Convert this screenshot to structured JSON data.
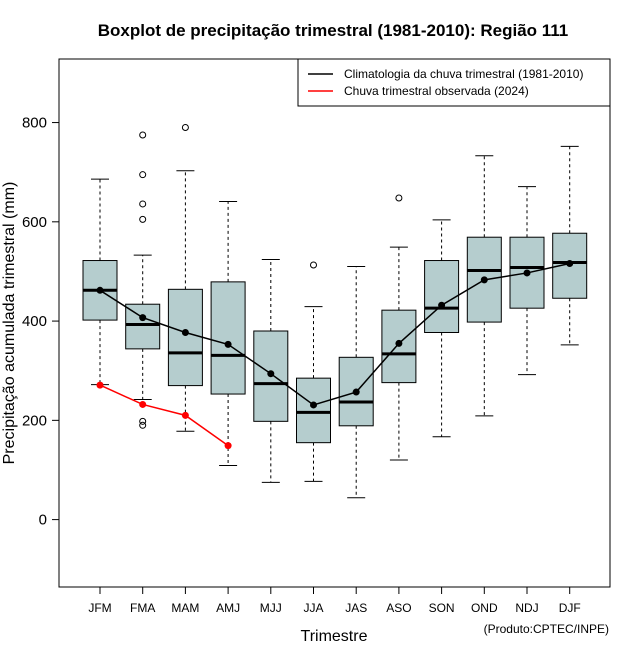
{
  "chart_data": {
    "type": "boxplot",
    "title": "Boxplot de precipitação trimestral (1981-2010): Região 111",
    "xlabel": "Trimestre",
    "ylabel": "Precipitação acumulada trimestral (mm)",
    "ylim": [
      -140,
      930
    ],
    "yticks": [
      0,
      200,
      400,
      600,
      800
    ],
    "credit": "(Produto:CPTEC/INPE)",
    "legend_position": "top-right",
    "categories": [
      "JFM",
      "FMA",
      "MAM",
      "AMJ",
      "MJJ",
      "JJA",
      "JAS",
      "ASO",
      "SON",
      "OND",
      "NDJ",
      "DJF"
    ],
    "boxes": [
      {
        "min": 272,
        "q1": 402,
        "median": 462,
        "q3": 522,
        "max": 686,
        "outliers": []
      },
      {
        "min": 242,
        "q1": 344,
        "median": 393,
        "q3": 434,
        "max": 533,
        "outliers": [
          775,
          695,
          636,
          605,
          198,
          190
        ]
      },
      {
        "min": 178,
        "q1": 270,
        "median": 336,
        "q3": 464,
        "max": 703,
        "outliers": [
          790
        ]
      },
      {
        "min": 109,
        "q1": 253,
        "median": 331,
        "q3": 479,
        "max": 641,
        "outliers": []
      },
      {
        "min": 75,
        "q1": 198,
        "median": 274,
        "q3": 380,
        "max": 524,
        "outliers": []
      },
      {
        "min": 77,
        "q1": 155,
        "median": 216,
        "q3": 285,
        "max": 429,
        "outliers": [
          513
        ]
      },
      {
        "min": 44,
        "q1": 189,
        "median": 237,
        "q3": 327,
        "max": 510,
        "outliers": []
      },
      {
        "min": 120,
        "q1": 276,
        "median": 334,
        "q3": 422,
        "max": 549,
        "outliers": [
          648
        ]
      },
      {
        "min": 167,
        "q1": 377,
        "median": 426,
        "q3": 522,
        "max": 604,
        "outliers": []
      },
      {
        "min": 209,
        "q1": 398,
        "median": 502,
        "q3": 569,
        "max": 733,
        "outliers": []
      },
      {
        "min": 292,
        "q1": 426,
        "median": 508,
        "q3": 569,
        "max": 671,
        "outliers": []
      },
      {
        "min": 352,
        "q1": 446,
        "median": 518,
        "q3": 577,
        "max": 752,
        "outliers": []
      }
    ],
    "series": [
      {
        "name": "Climatologia da chuva trimestral (1981-2010)",
        "color": "#000000",
        "values": [
          462,
          407,
          377,
          353,
          294,
          231,
          257,
          355,
          432,
          483,
          497,
          516
        ]
      },
      {
        "name": "Chuva trimestral observada (2024)",
        "color": "#ff0000",
        "values": [
          271,
          232,
          210,
          149,
          null,
          null,
          null,
          null,
          null,
          null,
          null,
          null
        ]
      }
    ],
    "box_fill": "#b5cdce"
  }
}
